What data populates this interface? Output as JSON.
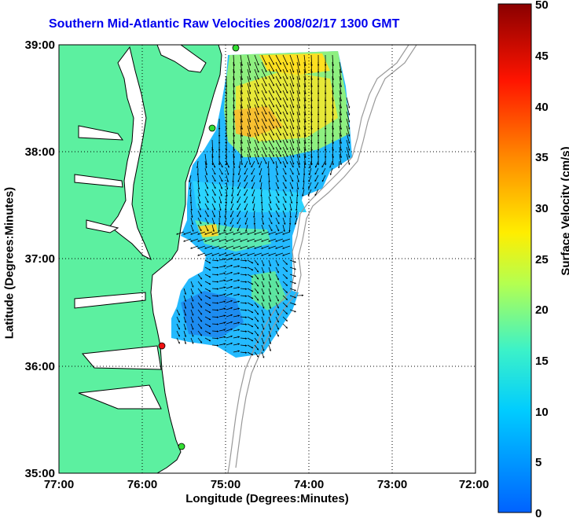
{
  "title": "Southern Mid-Atlantic Raw Velocities 2008/02/17 1300 GMT",
  "axes": {
    "xlabel": "Longitude (Degrees:Minutes)",
    "ylabel": "Latitude (Degrees:Minutes)",
    "xticks": [
      "77:00",
      "76:00",
      "75:00",
      "74:00",
      "73:00",
      "72:00"
    ],
    "yticks": [
      "39:00",
      "38:00",
      "37:00",
      "36:00",
      "35:00"
    ]
  },
  "colorbar": {
    "label": "Surface Velocity (cm/s)",
    "ticks": [
      "50",
      "45",
      "40",
      "35",
      "30",
      "25",
      "20",
      "15",
      "10",
      "5",
      "0"
    ],
    "range": [
      0,
      50
    ]
  },
  "colors": {
    "land": "#5cf0a0",
    "coast": "#000000",
    "bathymetry": "#999999",
    "grid": "#000000",
    "title": "#0000ee",
    "station_green": "#33dd33",
    "station_red": "#ee1111"
  },
  "stations": [
    {
      "id": "north",
      "status": "green"
    },
    {
      "id": "mid",
      "status": "green"
    },
    {
      "id": "cape",
      "status": "red"
    },
    {
      "id": "south",
      "status": "green"
    }
  ]
}
